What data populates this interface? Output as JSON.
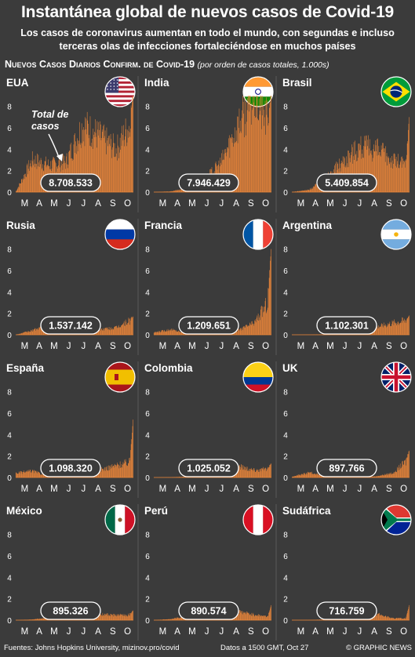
{
  "header": {
    "title": "Instantánea global de nuevos casos de Covid-19",
    "subtitle": "Los casos de coronavirus aumentan en todo el mundo, con segundas e incluso terceras olas de infecciones fortaleciéndose en muchos países",
    "chart_title": "Nuevos Casos Diarios Confirm. de Covid-19",
    "chart_note": "(por orden de casos totales, 1.000s)"
  },
  "annotation": {
    "text": "Total de casos"
  },
  "footer": {
    "source": "Fuentes: Johns Hopkins University, mizinov.pro/covid",
    "timestamp": "Datos a 1500 GMT, Oct 27",
    "credit": "© GRAPHIC NEWS"
  },
  "colors": {
    "bars": "#f0883a",
    "background": "#3b3b3b",
    "divider": "#5a5a5a",
    "pill_border": "#ffffff"
  },
  "chart_data": [
    {
      "type": "bar",
      "country": "EUA",
      "flag": "usa",
      "total": "8.708.533",
      "months": [
        "M",
        "A",
        "M",
        "J",
        "J",
        "A",
        "S",
        "O"
      ],
      "yticks": [
        "0",
        "2",
        "4",
        "6",
        "8"
      ],
      "ylim": [
        0,
        9
      ],
      "monthly_avg": [
        0.6,
        30,
        25,
        28,
        62,
        52,
        40,
        68
      ],
      "peak": 90
    },
    {
      "type": "bar",
      "country": "India",
      "flag": "india",
      "total": "7.946.429",
      "months": [
        "M",
        "A",
        "M",
        "J",
        "J",
        "A",
        "S",
        "O"
      ],
      "yticks": [
        "0",
        "2",
        "4",
        "6",
        "8"
      ],
      "ylim": [
        0,
        9
      ],
      "monthly_avg": [
        0.01,
        0.6,
        3.5,
        11,
        27,
        62,
        88,
        62
      ],
      "peak": 97
    },
    {
      "type": "bar",
      "country": "Brasil",
      "flag": "brazil",
      "total": "5.409.854",
      "months": [
        "M",
        "A",
        "M",
        "J",
        "J",
        "A",
        "S",
        "O"
      ],
      "yticks": [
        "0",
        "2",
        "4",
        "6",
        "8"
      ],
      "ylim": [
        0,
        9
      ],
      "monthly_avg": [
        0.1,
        2,
        12,
        28,
        42,
        40,
        30,
        24
      ],
      "peak": 70
    },
    {
      "type": "bar",
      "country": "Rusia",
      "flag": "russia",
      "total": "1.537.142",
      "months": [
        "M",
        "A",
        "M",
        "J",
        "J",
        "A",
        "S",
        "O"
      ],
      "yticks": [
        "0",
        "2",
        "4",
        "6",
        "8"
      ],
      "ylim": [
        0,
        9
      ],
      "monthly_avg": [
        0.05,
        4,
        10,
        8,
        6,
        5,
        6.5,
        15
      ],
      "peak": 17
    },
    {
      "type": "bar",
      "country": "Francia",
      "flag": "france",
      "total": "1.209.651",
      "months": [
        "M",
        "A",
        "M",
        "J",
        "J",
        "A",
        "S",
        "O"
      ],
      "yticks": [
        "0",
        "2",
        "4",
        "6",
        "8"
      ],
      "ylim": [
        0,
        9
      ],
      "monthly_avg": [
        2,
        5,
        1,
        0.5,
        1,
        4,
        11,
        35
      ],
      "peak": 80
    },
    {
      "type": "bar",
      "country": "Argentina",
      "flag": "argentina",
      "total": "1.102.301",
      "months": [
        "M",
        "A",
        "M",
        "J",
        "J",
        "A",
        "S",
        "O"
      ],
      "yticks": [
        "0",
        "2",
        "4",
        "6",
        "8"
      ],
      "ylim": [
        0,
        9
      ],
      "monthly_avg": [
        0.02,
        0.1,
        0.4,
        1.5,
        4,
        7,
        11,
        14
      ],
      "peak": 18
    },
    {
      "type": "bar",
      "country": "España",
      "flag": "spain",
      "total": "1.098.320",
      "months": [
        "M",
        "A",
        "M",
        "J",
        "J",
        "A",
        "S",
        "O"
      ],
      "yticks": [
        "0",
        "2",
        "4",
        "6",
        "8"
      ],
      "ylim": [
        0,
        9
      ],
      "monthly_avg": [
        4,
        6,
        0.8,
        0.4,
        1.5,
        7,
        11,
        15
      ],
      "peak": 54
    },
    {
      "type": "bar",
      "country": "Colombia",
      "flag": "colombia",
      "total": "1.025.052",
      "months": [
        "M",
        "A",
        "M",
        "J",
        "J",
        "A",
        "S",
        "O"
      ],
      "yticks": [
        "0",
        "2",
        "4",
        "6",
        "8"
      ],
      "ylim": [
        0,
        9
      ],
      "monthly_avg": [
        0.02,
        0.2,
        0.8,
        2.5,
        7,
        11,
        7,
        8
      ],
      "peak": 13
    },
    {
      "type": "bar",
      "country": "UK",
      "flag": "uk",
      "total": "897.766",
      "months": [
        "M",
        "A",
        "M",
        "J",
        "J",
        "A",
        "S",
        "O"
      ],
      "yticks": [
        "0",
        "2",
        "4",
        "6",
        "8"
      ],
      "ylim": [
        0,
        9
      ],
      "monthly_avg": [
        0.6,
        4.5,
        2.5,
        1,
        0.6,
        1,
        4,
        17
      ],
      "peak": 25
    },
    {
      "type": "bar",
      "country": "México",
      "flag": "mexico",
      "total": "895.326",
      "months": [
        "M",
        "A",
        "M",
        "J",
        "J",
        "A",
        "S",
        "O"
      ],
      "yticks": [
        "0",
        "2",
        "4",
        "6",
        "8"
      ],
      "ylim": [
        0,
        9
      ],
      "monthly_avg": [
        0.02,
        0.6,
        2.5,
        4.5,
        6,
        5.5,
        4.5,
        5
      ],
      "peak": 9
    },
    {
      "type": "bar",
      "country": "Perú",
      "flag": "peru",
      "total": "890.574",
      "months": [
        "M",
        "A",
        "M",
        "J",
        "J",
        "A",
        "S",
        "O"
      ],
      "yticks": [
        "0",
        "2",
        "4",
        "6",
        "8"
      ],
      "ylim": [
        0,
        9
      ],
      "monthly_avg": [
        0.05,
        1,
        4,
        4,
        5,
        8,
        5,
        3
      ],
      "peak": 14
    },
    {
      "type": "bar",
      "country": "Sudáfrica",
      "flag": "southafrica",
      "total": "716.759",
      "months": [
        "M",
        "A",
        "M",
        "J",
        "J",
        "A",
        "S",
        "O"
      ],
      "yticks": [
        "0",
        "2",
        "4",
        "6",
        "8"
      ],
      "ylim": [
        0,
        9
      ],
      "monthly_avg": [
        0.05,
        0.15,
        0.6,
        5,
        12,
        6,
        1.8,
        1.6
      ],
      "peak": 14
    }
  ]
}
